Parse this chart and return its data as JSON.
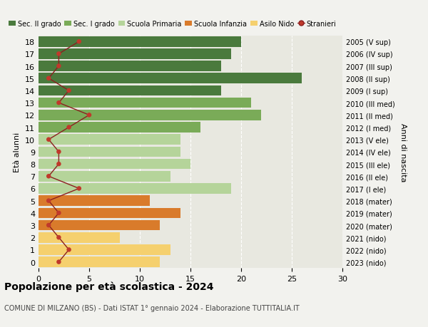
{
  "ages": [
    18,
    17,
    16,
    15,
    14,
    13,
    12,
    11,
    10,
    9,
    8,
    7,
    6,
    5,
    4,
    3,
    2,
    1,
    0
  ],
  "years": [
    "2005 (V sup)",
    "2006 (IV sup)",
    "2007 (III sup)",
    "2008 (II sup)",
    "2009 (I sup)",
    "2010 (III med)",
    "2011 (II med)",
    "2012 (I med)",
    "2013 (V ele)",
    "2014 (IV ele)",
    "2015 (III ele)",
    "2016 (II ele)",
    "2017 (I ele)",
    "2018 (mater)",
    "2019 (mater)",
    "2020 (mater)",
    "2021 (nido)",
    "2022 (nido)",
    "2023 (nido)"
  ],
  "bar_values": [
    20,
    19,
    18,
    26,
    18,
    21,
    22,
    16,
    14,
    14,
    15,
    13,
    19,
    11,
    14,
    12,
    8,
    13,
    12
  ],
  "bar_colors": [
    "#4a7a3d",
    "#4a7a3d",
    "#4a7a3d",
    "#4a7a3d",
    "#4a7a3d",
    "#7aab58",
    "#7aab58",
    "#7aab58",
    "#b5d49a",
    "#b5d49a",
    "#b5d49a",
    "#b5d49a",
    "#b5d49a",
    "#d97b2b",
    "#d97b2b",
    "#d97b2b",
    "#f5d06e",
    "#f5d06e",
    "#f5d06e"
  ],
  "stranieri": [
    4,
    2,
    2,
    1,
    3,
    2,
    5,
    3,
    1,
    2,
    2,
    1,
    4,
    1,
    2,
    1,
    2,
    3,
    2
  ],
  "stranieri_color": "#c0392b",
  "stranieri_line_color": "#8b2020",
  "legend_labels": [
    "Sec. II grado",
    "Sec. I grado",
    "Scuola Primaria",
    "Scuola Infanzia",
    "Asilo Nido",
    "Stranieri"
  ],
  "legend_colors": [
    "#4a7a3d",
    "#7aab58",
    "#b5d49a",
    "#d97b2b",
    "#f5d06e",
    "#c0392b"
  ],
  "title": "Popolazione per età scolastica - 2024",
  "subtitle": "COMUNE DI MILZANO (BS) - Dati ISTAT 1° gennaio 2024 - Elaborazione TUTTITALIA.IT",
  "ylabel_left": "Età alunni",
  "ylabel_right": "Anni di nascita",
  "xlim": [
    0,
    30
  ],
  "xticks": [
    0,
    5,
    10,
    15,
    20,
    25,
    30
  ],
  "background_color": "#f2f2ee",
  "axes_bg_color": "#e8e8e0",
  "grid_color": "#ffffff"
}
